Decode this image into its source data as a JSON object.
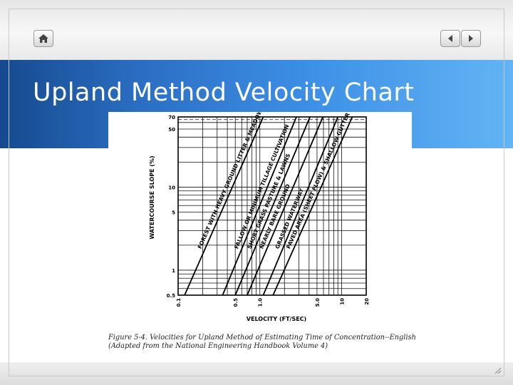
{
  "slide": {
    "title": "Upland Method Velocity Chart"
  },
  "toolbar": {
    "home_icon": "home-icon",
    "prev_icon": "triangle-left-icon",
    "next_icon": "triangle-right-icon"
  },
  "colors": {
    "band_dark": "#164a8e",
    "band_light": "#63b4f4",
    "title_text": "#ffffff"
  },
  "figure": {
    "caption_line1": "Figure 5-4. Velocities for Upland Method of Estimating Time of Concentration--English",
    "caption_line2": "(Adapted from the National Engineering Handbook Volume 4)"
  },
  "chart_data": {
    "type": "line",
    "xlabel": "VELOCITY (FT/SEC)",
    "ylabel": "WATERCOURSE SLOPE (%)",
    "x_scale": "log",
    "y_scale": "log",
    "xlim": [
      0.1,
      20
    ],
    "ylim": [
      0.5,
      70
    ],
    "x_ticks": [
      "0.1",
      "0.5",
      "1.0",
      "5.0",
      "10",
      "20"
    ],
    "x_tick_values": [
      0.1,
      0.5,
      1.0,
      5.0,
      10,
      20
    ],
    "y_ticks": [
      "70",
      "50",
      "10",
      "5",
      "1",
      "0.5"
    ],
    "y_tick_values": [
      70,
      50,
      10,
      5,
      1,
      0.5
    ],
    "grid": true,
    "series": [
      {
        "name": "FOREST WITH HEAVY GROUND LITTER & MEADOW",
        "x": [
          0.12,
          1.1
        ],
        "y": [
          0.5,
          70
        ]
      },
      {
        "name": "FALLOW OR MINIMUM TILLAGE CULTIVATION",
        "x": [
          0.35,
          2.8
        ],
        "y": [
          0.5,
          70
        ]
      },
      {
        "name": "SHORT GRASS PASTURE & LAWNS",
        "x": [
          0.5,
          4.1
        ],
        "y": [
          0.5,
          70
        ]
      },
      {
        "name": "NEARLY BARE GROUND",
        "x": [
          0.7,
          5.9
        ],
        "y": [
          0.5,
          70
        ]
      },
      {
        "name": "GRASSED WATERWAY",
        "x": [
          1.1,
          9.0
        ],
        "y": [
          0.5,
          70
        ]
      },
      {
        "name": "PAVED AREA (SHEET FLOW) & SHALLOW GUTTER FLOW",
        "x": [
          1.45,
          13.5
        ],
        "y": [
          0.5,
          70
        ]
      }
    ]
  }
}
